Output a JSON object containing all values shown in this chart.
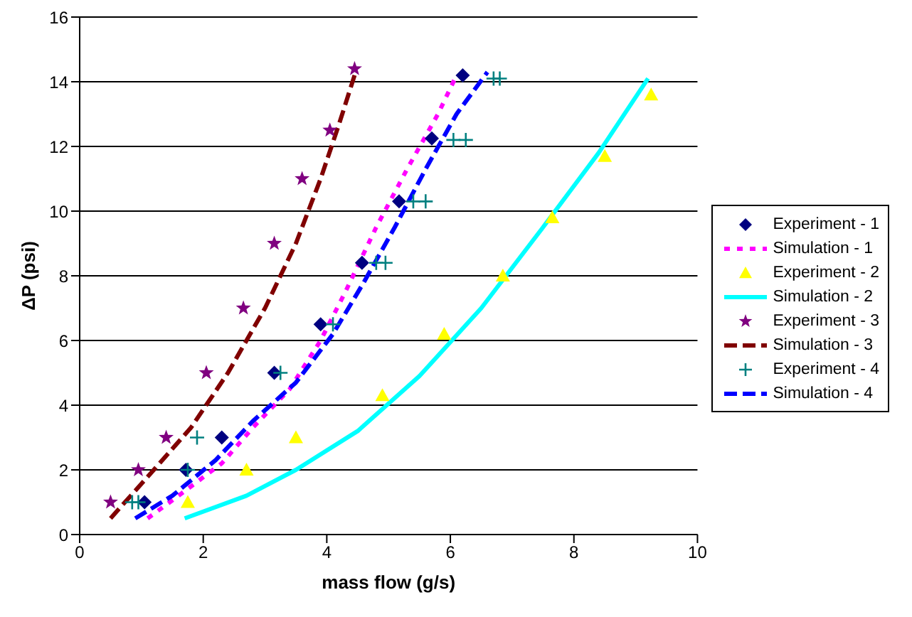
{
  "chart_data": {
    "type": "scatter",
    "xlabel": "mass flow (g/s)",
    "ylabel": "ΔP (psi)",
    "xlim": [
      0,
      10
    ],
    "xticks": [
      0,
      2,
      4,
      6,
      8,
      10
    ],
    "ylim": [
      0,
      16
    ],
    "yticks": [
      0,
      2,
      4,
      6,
      8,
      10,
      12,
      14,
      16
    ],
    "grid": "y",
    "legend": "right",
    "series": [
      {
        "name": "Experiment - 1",
        "type": "scatter",
        "marker": "diamond",
        "color": "#000080",
        "x": [
          1.05,
          1.72,
          2.3,
          3.15,
          3.9,
          4.57,
          5.17,
          5.7,
          6.2
        ],
        "values": [
          1,
          2,
          3,
          5,
          6.5,
          8.4,
          10.3,
          12.25,
          14.2
        ]
      },
      {
        "name": "Simulation - 1",
        "type": "line",
        "line_style": "dotted",
        "color": "#ff00ff",
        "x": [
          1.1,
          1.6,
          2.3,
          2.8,
          3.4,
          3.9,
          4.3,
          4.8,
          5.3,
          5.8,
          6.1
        ],
        "values": [
          0.5,
          1.2,
          2.2,
          3.3,
          4.5,
          6,
          7.5,
          9.5,
          11.3,
          13,
          14.2
        ]
      },
      {
        "name": "Experiment - 2",
        "type": "scatter",
        "marker": "triangle",
        "color": "#ffff00",
        "x": [
          1.75,
          2.7,
          3.5,
          4.9,
          5.9,
          6.85,
          7.65,
          8.5,
          9.25
        ],
        "values": [
          1,
          2,
          3,
          4.3,
          6.2,
          8,
          9.8,
          11.7,
          13.6
        ]
      },
      {
        "name": "Simulation - 2",
        "type": "line",
        "line_style": "solid",
        "color": "#00ffff",
        "x": [
          1.7,
          2.7,
          3.5,
          4.5,
          5.5,
          6.5,
          7.5,
          8.4,
          9.2
        ],
        "values": [
          0.5,
          1.2,
          2,
          3.2,
          4.9,
          7,
          9.5,
          11.8,
          14.1
        ]
      },
      {
        "name": "Experiment - 3",
        "type": "scatter",
        "marker": "star",
        "color": "#800080",
        "x": [
          0.5,
          0.95,
          1.4,
          2.05,
          2.65,
          3.15,
          3.6,
          4.05,
          4.45
        ],
        "values": [
          1,
          2,
          3,
          5,
          7,
          9,
          11,
          12.5,
          14.4
        ]
      },
      {
        "name": "Simulation - 3",
        "type": "line",
        "line_style": "dashed",
        "color": "#800000",
        "x": [
          0.5,
          1.2,
          1.8,
          2.4,
          3,
          3.5,
          3.9,
          4.2,
          4.45
        ],
        "values": [
          0.5,
          2,
          3.3,
          5,
          7,
          9,
          11,
          12.7,
          14.2
        ]
      },
      {
        "name": "Experiment - 4",
        "type": "scatter",
        "marker": "cross",
        "color": "#008080",
        "x": [
          0.85,
          0.95,
          1.75,
          1.9,
          3.25,
          4.1,
          4.8,
          4.95,
          5.4,
          5.6,
          6.05,
          6.25,
          6.7,
          6.8
        ],
        "values": [
          1,
          1,
          2,
          3,
          5,
          6.5,
          8.4,
          8.4,
          10.3,
          10.3,
          12.2,
          12.2,
          14.1,
          14.1
        ]
      },
      {
        "name": "Simulation - 4",
        "type": "line",
        "line_style": "dashed",
        "color": "#0000ff",
        "x": [
          0.9,
          1.5,
          2.2,
          2.8,
          3.5,
          4.1,
          4.6,
          5.1,
          5.6,
          6.1,
          6.6
        ],
        "values": [
          0.5,
          1.2,
          2.3,
          3.5,
          4.7,
          6.2,
          7.8,
          9.5,
          11.3,
          13,
          14.3
        ]
      }
    ]
  }
}
